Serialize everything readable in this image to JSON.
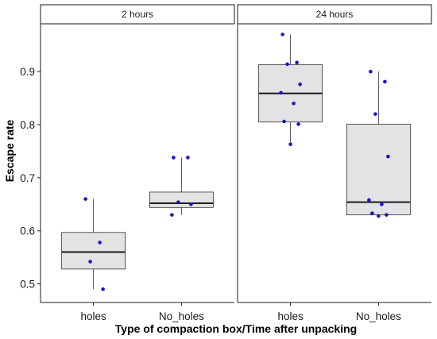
{
  "chart_data": {
    "type": "box",
    "xlabel": "Type of compaction box/Time after unpacking",
    "ylabel": "Escape rate",
    "ylim": [
      0.465,
      0.99
    ],
    "yticks": [
      0.5,
      0.6,
      0.7,
      0.8,
      0.9
    ],
    "categories": [
      "holes",
      "No_holes"
    ],
    "grid": false,
    "colors": {
      "box_fill": "#e3e3e5",
      "box_line": "#333333",
      "point": "#1515c8",
      "strip_bg": "#ffffff"
    },
    "panels": [
      {
        "title": "2 hours",
        "boxes": [
          {
            "category": "holes",
            "min": 0.49,
            "q1": 0.528,
            "median": 0.56,
            "q3": 0.597,
            "max": 0.66,
            "points": [
              0.66,
              0.578,
              0.542,
              0.49
            ]
          },
          {
            "category": "No_holes",
            "min": 0.63,
            "q1": 0.644,
            "median": 0.652,
            "q3": 0.673,
            "max": 0.738,
            "points": [
              0.738,
              0.738,
              0.654,
              0.65,
              0.63
            ]
          }
        ]
      },
      {
        "title": "24 hours",
        "boxes": [
          {
            "category": "holes",
            "min": 0.763,
            "q1": 0.805,
            "median": 0.859,
            "q3": 0.913,
            "max": 0.97,
            "points": [
              0.97,
              0.917,
              0.914,
              0.876,
              0.86,
              0.84,
              0.806,
              0.801,
              0.763
            ]
          },
          {
            "category": "No_holes",
            "min": 0.63,
            "q1": 0.63,
            "median": 0.654,
            "q3": 0.801,
            "max": 0.9,
            "points": [
              0.9,
              0.881,
              0.82,
              0.74,
              0.658,
              0.65,
              0.633,
              0.63,
              0.628
            ]
          }
        ]
      }
    ]
  }
}
